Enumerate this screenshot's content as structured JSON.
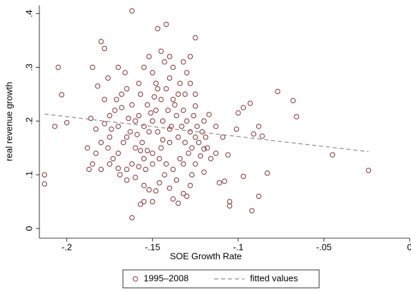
{
  "chart_data": {
    "type": "scatter",
    "xlabel": "SOE Growth Rate",
    "ylabel": "real revenue growth",
    "xlim": [
      -0.216,
      0
    ],
    "ylim": [
      -0.018,
      0.415
    ],
    "xticks": [
      {
        "value": -0.2,
        "label": "-.2"
      },
      {
        "value": -0.15,
        "label": "-.15"
      },
      {
        "value": -0.1,
        "label": "-.1"
      },
      {
        "value": -0.05,
        "label": "-.05"
      },
      0
    ],
    "yticks": [
      0,
      {
        "value": 0.1,
        "label": ".1"
      },
      {
        "value": 0.2,
        "label": ".2"
      },
      {
        "value": 0.3,
        "label": ".3"
      },
      {
        "value": 0.4,
        "label": ".4"
      }
    ],
    "legend": "bottom",
    "series": [
      {
        "name": "1995–2008",
        "color": "#8b2c2c",
        "marker": "hollow-circle",
        "x": [
          -0.213,
          -0.213,
          -0.205,
          -0.203,
          -0.207,
          -0.2,
          -0.188,
          -0.185,
          -0.18,
          -0.178,
          -0.162,
          -0.162,
          -0.142,
          -0.147,
          -0.125,
          -0.077,
          -0.068,
          -0.066,
          -0.045,
          -0.024,
          -0.092,
          -0.088,
          -0.083,
          -0.097,
          -0.093,
          -0.097,
          -0.1,
          -0.101,
          -0.091,
          -0.088,
          -0.086,
          -0.105,
          -0.105,
          -0.108,
          -0.111,
          -0.113,
          -0.106,
          -0.109,
          -0.113,
          -0.117,
          -0.12,
          -0.125,
          -0.12,
          -0.125,
          -0.127,
          -0.128,
          -0.13,
          -0.135,
          -0.138,
          -0.14,
          -0.143,
          -0.148,
          -0.152,
          -0.15,
          -0.155,
          -0.157,
          -0.16,
          -0.165,
          -0.17,
          -0.175,
          -0.18,
          -0.185,
          -0.18,
          -0.175,
          -0.172,
          -0.168,
          -0.165,
          -0.162,
          -0.158,
          -0.155,
          -0.152,
          -0.15,
          -0.148,
          -0.145,
          -0.142,
          -0.14,
          -0.138,
          -0.135,
          -0.132,
          -0.13,
          -0.128,
          -0.135,
          -0.14,
          -0.145,
          -0.15,
          -0.155,
          -0.16,
          -0.165,
          -0.17,
          -0.175,
          -0.178,
          -0.182,
          -0.176,
          -0.17,
          -0.166,
          -0.158,
          -0.155,
          -0.152,
          -0.148,
          -0.143,
          -0.14,
          -0.138,
          -0.136,
          -0.133,
          -0.131,
          -0.129,
          -0.127,
          -0.125,
          -0.123,
          -0.121,
          -0.119,
          -0.125,
          -0.128,
          -0.13,
          -0.132,
          -0.128,
          -0.145,
          -0.15,
          -0.157,
          -0.16,
          -0.163,
          -0.167,
          -0.17,
          -0.173,
          -0.176,
          -0.162,
          -0.158,
          -0.154,
          -0.15,
          -0.146,
          -0.142,
          -0.138,
          -0.134,
          -0.132,
          -0.147,
          -0.144,
          -0.141,
          -0.139,
          -0.137,
          -0.134,
          -0.131,
          -0.126,
          -0.124,
          -0.153,
          -0.156,
          -0.159,
          -0.164,
          -0.168,
          -0.171,
          -0.174,
          -0.178,
          -0.183,
          -0.186,
          -0.183,
          -0.187,
          -0.165,
          -0.169,
          -0.144,
          -0.14,
          -0.149,
          -0.147,
          -0.151,
          -0.118,
          -0.116,
          -0.122,
          -0.12,
          -0.136,
          -0.132,
          -0.146,
          -0.155,
          -0.153,
          -0.157
        ],
        "values": [
          0.1,
          0.083,
          0.3,
          0.249,
          0.19,
          0.197,
          0.15,
          0.3,
          0.348,
          0.335,
          0.405,
          0.02,
          0.38,
          0.372,
          0.355,
          0.255,
          0.238,
          0.208,
          0.137,
          0.108,
          0.033,
          0.06,
          0.103,
          0.097,
          0.233,
          0.225,
          0.215,
          0.185,
          0.176,
          0.19,
          0.172,
          0.05,
          0.042,
          0.088,
          0.085,
          0.14,
          0.137,
          0.17,
          0.19,
          0.212,
          0.2,
          0.228,
          0.148,
          0.12,
          0.1,
          0.08,
          0.06,
          0.047,
          0.055,
          0.075,
          0.1,
          0.07,
          0.072,
          0.05,
          0.05,
          0.045,
          0.095,
          0.09,
          0.112,
          0.12,
          0.11,
          0.12,
          0.16,
          0.17,
          0.22,
          0.25,
          0.26,
          0.23,
          0.21,
          0.19,
          0.18,
          0.2,
          0.22,
          0.24,
          0.26,
          0.28,
          0.3,
          0.25,
          0.22,
          0.2,
          0.18,
          0.17,
          0.16,
          0.15,
          0.14,
          0.13,
          0.15,
          0.17,
          0.19,
          0.21,
          0.24,
          0.265,
          0.28,
          0.3,
          0.29,
          0.27,
          0.3,
          0.32,
          0.27,
          0.31,
          0.32,
          0.24,
          0.21,
          0.19,
          0.16,
          0.14,
          0.15,
          0.17,
          0.16,
          0.18,
          0.17,
          0.25,
          0.27,
          0.29,
          0.31,
          0.32,
          0.33,
          0.29,
          0.25,
          0.2,
          0.18,
          0.16,
          0.14,
          0.13,
          0.15,
          0.12,
          0.115,
          0.11,
          0.12,
          0.13,
          0.12,
          0.11,
          0.13,
          0.12,
          0.18,
          0.2,
          0.22,
          0.19,
          0.23,
          0.27,
          0.25,
          0.21,
          0.19,
          0.23,
          0.16,
          0.175,
          0.205,
          0.225,
          0.24,
          0.185,
          0.195,
          0.185,
          0.205,
          0.14,
          0.11,
          0.11,
          0.1,
          0.165,
          0.185,
          0.245,
          0.26,
          0.215,
          0.15,
          0.13,
          0.135,
          0.105,
          0.09,
          0.065,
          0.085,
          0.08,
          0.145,
          0.145
        ]
      },
      {
        "name": "fitted values",
        "color": "#8c8c8c",
        "style": "dashed",
        "x": [
          -0.213,
          -0.024
        ],
        "values": [
          0.213,
          0.143
        ]
      }
    ]
  }
}
